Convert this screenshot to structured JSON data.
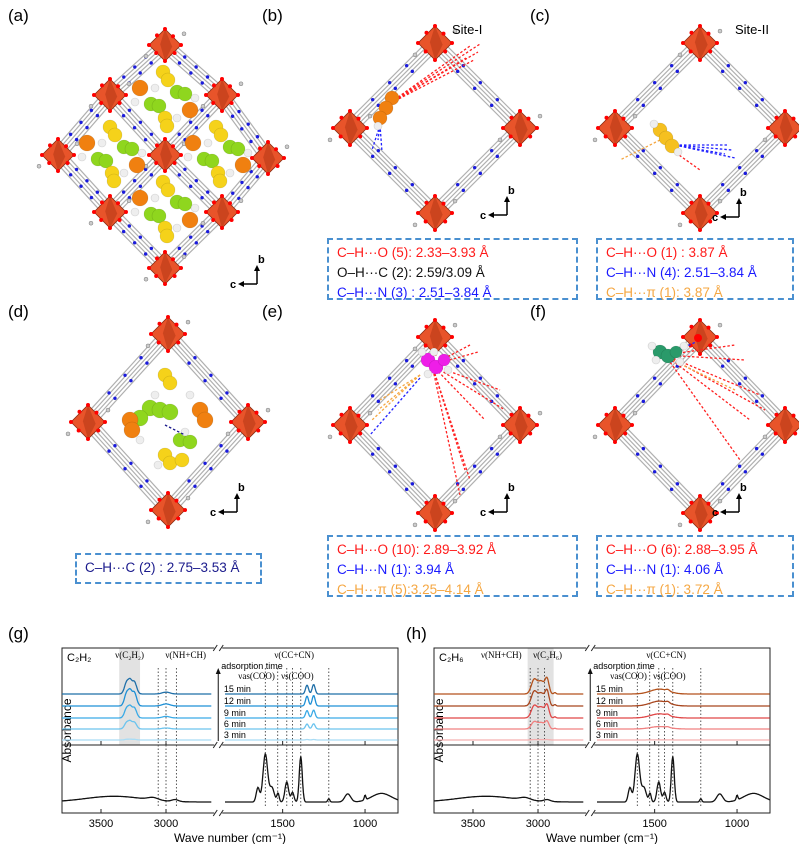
{
  "panels": {
    "a": {
      "label": "(a)",
      "axes": {
        "up": "b",
        "left": "c"
      }
    },
    "b": {
      "label": "(b)",
      "site": "Site-I",
      "axes": {
        "up": "b",
        "left": "c"
      },
      "contacts": [
        {
          "text": "C–H···O (5): 2.33–3.93 Å",
          "color": "#ff1a1a"
        },
        {
          "text": "O–H···C (2): 2.59/3.09 Å",
          "color": "#111111"
        },
        {
          "text": "C–H···N (3) : 2.51–3.84 Å",
          "color": "#1a1aff"
        }
      ]
    },
    "c": {
      "label": "(c)",
      "site": "Site-II",
      "axes": {
        "up": "b",
        "left": "c"
      },
      "contacts": [
        {
          "text": "C–H···O (1) : 3.87 Å",
          "color": "#ff1a1a"
        },
        {
          "text": "C–H···N (4): 2.51–3.84 Å",
          "color": "#1a1aff"
        },
        {
          "text": "C–H···π (1): 3.87 Å",
          "color": "#f5a742"
        }
      ]
    },
    "d": {
      "label": "(d)",
      "axes": {
        "up": "b",
        "left": "c"
      },
      "contacts": [
        {
          "text": "C–H···C (2) : 2.75–3.53 Å",
          "color": "#1a1a8c"
        }
      ]
    },
    "e": {
      "label": "(e)",
      "axes": {
        "up": "b",
        "left": "c"
      },
      "contacts": [
        {
          "text": "C–H···O (10): 2.89–3.92 Å",
          "color": "#ff1a1a"
        },
        {
          "text": "C–H···N (1): 3.94 Å",
          "color": "#1a1aff"
        },
        {
          "text": "C–H···π (5):3.25–4.14 Å",
          "color": "#f5a742"
        }
      ]
    },
    "f": {
      "label": "(f)",
      "axes": {
        "up": "b",
        "left": "c"
      },
      "contacts": [
        {
          "text": "C–H···O (6): 2.88–3.95 Å",
          "color": "#ff1a1a"
        },
        {
          "text": "C–H···N (1): 4.06 Å",
          "color": "#1a1aff"
        },
        {
          "text": "C–H···π (1): 3.72 Å",
          "color": "#f5a742"
        }
      ]
    }
  },
  "colors": {
    "octahedron": "#e8542a",
    "oxygen": "#ff0000",
    "nitrogen": "#1a1adc",
    "linker": "#b0b0b0",
    "box_border": "#4a90d0"
  },
  "chart_data": [
    {
      "type": "line",
      "panel_label": "(g)",
      "gas": "C₂H₂",
      "xlabel": "Wave number (cm⁻¹)",
      "ylabel": "Absorbance",
      "x_segments": [
        [
          3800,
          2650
        ],
        [
          1850,
          800
        ]
      ],
      "xticks": [
        3500,
        3000,
        1500,
        1000
      ],
      "time_arrow_label": "adsorption time",
      "times": [
        "15 min",
        "12 min",
        "9 min",
        "6 min",
        "3 min"
      ],
      "series_colors": [
        "#1f6fa8",
        "#1e90d6",
        "#3aaae6",
        "#6cc4ee",
        "#a9dcf5"
      ],
      "time_scale": [
        0.9,
        1.0,
        0.75,
        0.5,
        0.05
      ],
      "adsorbed_peaks": [
        [
          3300,
          1.0,
          18
        ],
        [
          3245,
          1.0,
          18
        ],
        [
          3275,
          0.6,
          12
        ],
        [
          3000,
          0.15,
          30
        ],
        [
          1352,
          0.7,
          9
        ],
        [
          1312,
          0.75,
          9
        ]
      ],
      "highlight_range": [
        3360,
        3200
      ],
      "reference_peaks": [
        [
          3400,
          0.12,
          220
        ],
        [
          3100,
          0.05,
          40
        ],
        [
          2930,
          0.04,
          25
        ],
        [
          1650,
          0.3,
          10
        ],
        [
          1605,
          1.0,
          14
        ],
        [
          1565,
          0.3,
          14
        ],
        [
          1528,
          0.18,
          7
        ],
        [
          1475,
          0.42,
          11
        ],
        [
          1440,
          0.2,
          9
        ],
        [
          1390,
          0.95,
          9
        ],
        [
          1220,
          0.07,
          6
        ],
        [
          1105,
          0.17,
          18
        ],
        [
          1000,
          0.1,
          5
        ],
        [
          900,
          0.18,
          60
        ]
      ],
      "marker_lines": [
        3060,
        3000,
        2920,
        1605,
        1530,
        1475,
        1440,
        1390,
        1220
      ],
      "annotations": [
        {
          "text": "ν(C₂H₂)",
          "x": 3280
        },
        {
          "text": "ν(NH+CH)",
          "x": 2990
        },
        {
          "text": "ν(CC+CN)",
          "x": 1430
        },
        {
          "text": "νas(COO)",
          "x": 1620
        },
        {
          "text": "νs(COO)",
          "x": 1400
        }
      ]
    },
    {
      "type": "line",
      "panel_label": "(h)",
      "gas": "C₂H₆",
      "xlabel": "Wave number (cm⁻¹)",
      "ylabel": "Absorbance",
      "x_segments": [
        [
          3800,
          2650
        ],
        [
          1850,
          800
        ]
      ],
      "xticks": [
        3500,
        3000,
        1500,
        1000
      ],
      "time_arrow_label": "adsorption time",
      "times": [
        "15 min",
        "12 min",
        "9 min",
        "6 min",
        "3 min"
      ],
      "series_colors": [
        "#b3521c",
        "#a8461e",
        "#e04848",
        "#f08080",
        "#f5b0b0"
      ],
      "time_scale": [
        1.0,
        1.0,
        0.85,
        0.5,
        0.03
      ],
      "adsorbed_peaks": [
        [
          3030,
          1.0,
          22
        ],
        [
          2975,
          0.9,
          25
        ],
        [
          2930,
          1.0,
          15
        ],
        [
          2870,
          0.1,
          8
        ],
        [
          1470,
          0.35,
          55
        ],
        [
          1420,
          0.1,
          10
        ]
      ],
      "highlight_range": [
        3080,
        2880
      ],
      "reference_peaks": [
        [
          3400,
          0.12,
          220
        ],
        [
          3100,
          0.05,
          40
        ],
        [
          2930,
          0.04,
          25
        ],
        [
          1650,
          0.3,
          10
        ],
        [
          1605,
          1.0,
          14
        ],
        [
          1565,
          0.3,
          14
        ],
        [
          1528,
          0.18,
          7
        ],
        [
          1475,
          0.42,
          11
        ],
        [
          1440,
          0.2,
          9
        ],
        [
          1390,
          0.95,
          9
        ],
        [
          1220,
          0.07,
          6
        ],
        [
          1105,
          0.17,
          18
        ],
        [
          1000,
          0.1,
          5
        ],
        [
          900,
          0.18,
          60
        ]
      ],
      "marker_lines": [
        3060,
        3000,
        2950,
        1605,
        1530,
        1475,
        1440,
        1390,
        1220
      ],
      "annotations": [
        {
          "text": "ν(NH+CH)",
          "x": 3080
        },
        {
          "text": "ν(C₂H₆)",
          "x": 2930
        },
        {
          "text": "ν(CC+CN)",
          "x": 1430
        },
        {
          "text": "νas(COO)",
          "x": 1620
        },
        {
          "text": "νs(COO)",
          "x": 1400
        }
      ]
    }
  ]
}
